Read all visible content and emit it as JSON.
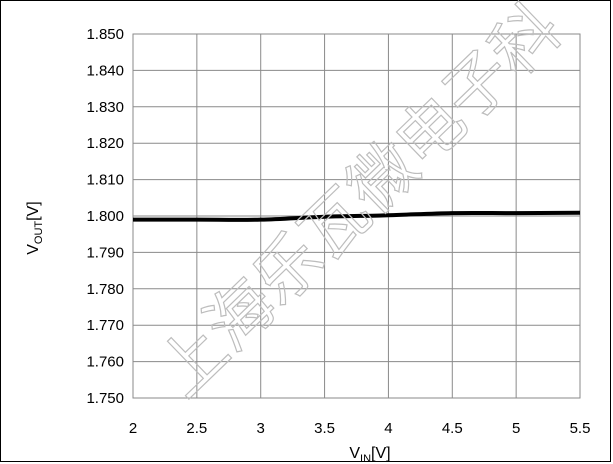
{
  "chart_data": {
    "type": "line",
    "xlabel_main": "V",
    "xlabel_sub": "IN",
    "xlabel_suffix": "[V]",
    "ylabel_main": "V",
    "ylabel_sub": "OUT",
    "ylabel_suffix": "[V]",
    "xlim": [
      2,
      5.5
    ],
    "ylim": [
      1.75,
      1.85
    ],
    "x_ticks": [
      2,
      2.5,
      3,
      3.5,
      4,
      4.5,
      5,
      5.5
    ],
    "x_tick_labels": [
      "2",
      "2.5",
      "3",
      "3.5",
      "4",
      "4.5",
      "5",
      "5.5"
    ],
    "y_ticks": [
      1.85,
      1.84,
      1.83,
      1.82,
      1.81,
      1.8,
      1.79,
      1.78,
      1.77,
      1.76,
      1.75
    ],
    "y_tick_labels": [
      "1.850",
      "1.840",
      "1.830",
      "1.820",
      "1.810",
      "1.800",
      "1.790",
      "1.780",
      "1.770",
      "1.760",
      "1.750"
    ],
    "grid": true,
    "series": [
      {
        "x": [
          2,
          2.5,
          3,
          3.5,
          4,
          4.5,
          5,
          5.5
        ],
        "y": [
          1.799,
          1.799,
          1.799,
          1.7998,
          1.8002,
          1.8008,
          1.8008,
          1.8009
        ],
        "color": "#000000"
      }
    ]
  },
  "watermark": "上海乐瓦微电子科"
}
